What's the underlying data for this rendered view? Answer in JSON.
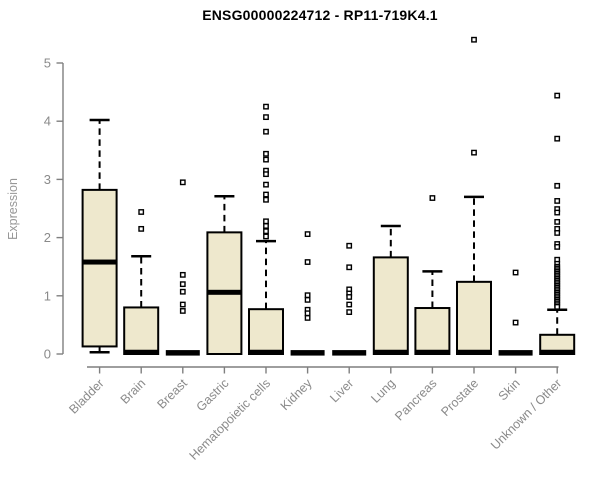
{
  "page": {
    "background": "#ffffff"
  },
  "chart_data": {
    "type": "boxplot",
    "title": "ENSG00000224712 - RP11-719K4.1",
    "ylabel": "Expression",
    "xlabel": "",
    "ylim": [
      0,
      5.5
    ],
    "yticks": [
      0,
      1,
      2,
      3,
      4,
      5
    ],
    "grid": false,
    "legend": false,
    "categories": [
      "Bladder",
      "Brain",
      "Breast",
      "Gastric",
      "Hematopoietic cells",
      "Kidney",
      "Liver",
      "Lung",
      "Pancreas",
      "Prostate",
      "Skin",
      "Unknown / Other"
    ],
    "boxes": [
      {
        "category": "Bladder",
        "whisker_low": 0.03,
        "q1": 0.13,
        "median": 1.58,
        "q3": 2.82,
        "whisker_high": 4.02,
        "outliers": []
      },
      {
        "category": "Brain",
        "whisker_low": 0,
        "q1": 0,
        "median": 0.03,
        "q3": 0.8,
        "whisker_high": 1.68,
        "outliers": [
          2.44,
          2.15
        ]
      },
      {
        "category": "Breast",
        "whisker_low": 0,
        "q1": 0,
        "median": 0.02,
        "q3": 0.02,
        "whisker_high": 0.02,
        "outliers": [
          2.95,
          1.36,
          1.2,
          1.07,
          0.85,
          0.74
        ]
      },
      {
        "category": "Gastric",
        "whisker_low": 0,
        "q1": 0,
        "median": 1.06,
        "q3": 2.09,
        "whisker_high": 2.71,
        "outliers": []
      },
      {
        "category": "Hematopoietic cells",
        "whisker_low": 0,
        "q1": 0,
        "median": 0.03,
        "q3": 0.77,
        "whisker_high": 1.94,
        "outliers": [
          4.25,
          4.07,
          3.82,
          3.44,
          3.34,
          3.15,
          3.09,
          2.91,
          2.74,
          2.65,
          2.28,
          2.2,
          2.11,
          2.02
        ]
      },
      {
        "category": "Kidney",
        "whisker_low": 0,
        "q1": 0,
        "median": 0.02,
        "q3": 0.02,
        "whisker_high": 0.02,
        "outliers": [
          2.06,
          1.58,
          1.01,
          0.93,
          0.76,
          0.7,
          0.62
        ]
      },
      {
        "category": "Liver",
        "whisker_low": 0,
        "q1": 0,
        "median": 0.02,
        "q3": 0.02,
        "whisker_high": 0.02,
        "outliers": [
          1.86,
          1.49,
          1.11,
          1.04,
          0.98,
          0.85,
          0.72
        ]
      },
      {
        "category": "Lung",
        "whisker_low": 0,
        "q1": 0,
        "median": 0.03,
        "q3": 1.66,
        "whisker_high": 2.2,
        "outliers": []
      },
      {
        "category": "Pancreas",
        "whisker_low": 0,
        "q1": 0,
        "median": 0.03,
        "q3": 0.79,
        "whisker_high": 1.42,
        "outliers": [
          2.68
        ]
      },
      {
        "category": "Prostate",
        "whisker_low": 0,
        "q1": 0,
        "median": 0.03,
        "q3": 1.24,
        "whisker_high": 2.7,
        "outliers": [
          5.4,
          3.46
        ]
      },
      {
        "category": "Skin",
        "whisker_low": 0,
        "q1": 0,
        "median": 0.02,
        "q3": 0.02,
        "whisker_high": 0.02,
        "outliers": [
          1.4,
          0.54
        ]
      },
      {
        "category": "Unknown / Other",
        "whisker_low": 0,
        "q1": 0,
        "median": 0.03,
        "q3": 0.33,
        "whisker_high": 0.76,
        "outliers": [
          4.44,
          3.7,
          2.89,
          2.63,
          2.49,
          2.43,
          2.27,
          2.15,
          2.08,
          1.89,
          1.84,
          1.62,
          1.55,
          1.5,
          1.47,
          1.44,
          1.41,
          1.38,
          1.35,
          1.32,
          1.29,
          1.26,
          1.23,
          1.2,
          1.17,
          1.14,
          1.11,
          1.08,
          1.05,
          1.02,
          0.99,
          0.96,
          0.93,
          0.9,
          0.87,
          0.84,
          0.81
        ]
      }
    ],
    "colors": {
      "box_fill": "#EEE8CD",
      "box_stroke": "#000000",
      "median": "#000000",
      "whisker": "#000000",
      "outlier_stroke": "#000000",
      "outlier_fill": "#ffffff",
      "axis": "#7f7f7f",
      "tick_label": "#8a8a8a",
      "title": "#000000"
    }
  }
}
